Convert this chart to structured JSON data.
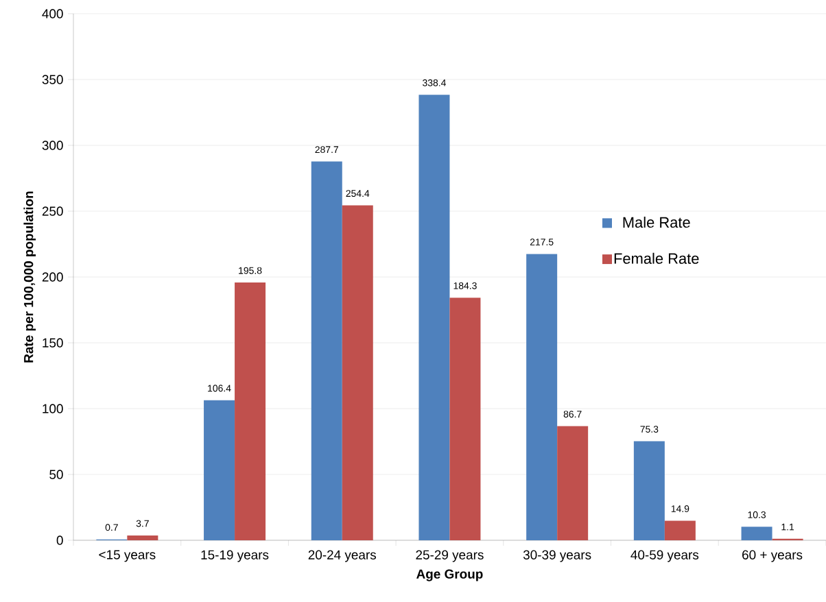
{
  "chart_data": {
    "type": "bar",
    "xlabel": "Age Group",
    "ylabel": "Rate per 100,000 population",
    "categories": [
      "<15 years",
      "15-19 years",
      "20-24 years",
      "25-29 years",
      "30-39 years",
      "40-59 years",
      "60 + years"
    ],
    "series": [
      {
        "name": "Male Rate",
        "color": "#4f81bd",
        "values": [
          0.7,
          106.4,
          287.7,
          338.4,
          217.5,
          75.3,
          10.3
        ]
      },
      {
        "name": "Female Rate",
        "color": "#c0504d",
        "values": [
          3.7,
          195.8,
          254.4,
          184.3,
          86.7,
          14.9,
          1.1
        ]
      }
    ],
    "ylim": [
      0,
      400
    ],
    "yticks": [
      0,
      50,
      100,
      150,
      200,
      250,
      300,
      350,
      400
    ],
    "grid": "y",
    "legend": "right",
    "data_labels": true
  }
}
